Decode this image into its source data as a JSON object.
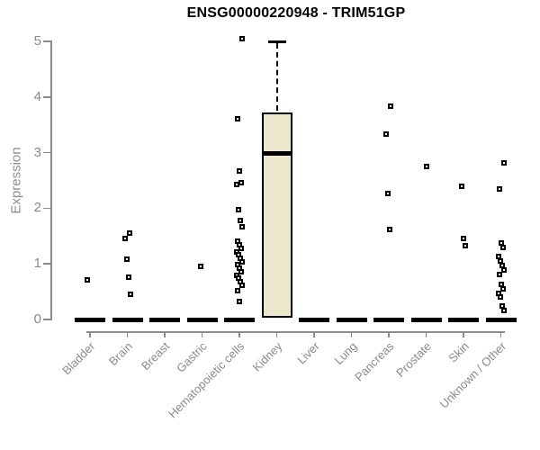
{
  "title": "ENSG00000220948 - TRIM51GP",
  "chart_data": {
    "type": "boxplot",
    "title": "ENSG00000220948 - TRIM51GP",
    "xlabel": "",
    "ylabel": "Expression",
    "ylim": [
      0,
      5
    ],
    "yticks": [
      0,
      1,
      2,
      3,
      4,
      5
    ],
    "grid": false,
    "legend": false,
    "categories": [
      "Bladder",
      "Brain",
      "Breast",
      "Gastric",
      "Hematopoietic cells",
      "Kidney",
      "Liver",
      "Lung",
      "Pancreas",
      "Prostate",
      "Skin",
      "Unknown / Other"
    ],
    "series": [
      {
        "category": "Bladder",
        "box": {
          "median": 0,
          "collapsed": true
        },
        "points": [
          0.71
        ]
      },
      {
        "category": "Brain",
        "box": {
          "median": 0,
          "collapsed": true
        },
        "points": [
          1.56,
          1.45,
          1.08,
          0.76,
          0.45
        ]
      },
      {
        "category": "Breast",
        "box": {
          "median": 0,
          "collapsed": true
        },
        "points": []
      },
      {
        "category": "Gastric",
        "box": {
          "median": 0,
          "collapsed": true
        },
        "points": [
          0.95
        ]
      },
      {
        "category": "Hematopoietic cells",
        "box": {
          "median": 0,
          "collapsed": true
        },
        "points": [
          5.05,
          3.61,
          2.67,
          2.46,
          2.43,
          1.97,
          1.78,
          1.67,
          1.4,
          1.34,
          1.28,
          1.22,
          1.16,
          1.1,
          1.04,
          0.98,
          0.92,
          0.86,
          0.8,
          0.74,
          0.68,
          0.62,
          0.52,
          0.32
        ]
      },
      {
        "category": "Kidney",
        "box": {
          "q1": 0.03,
          "median": 2.98,
          "q3": 3.72,
          "whisker_high": 5.0,
          "collapsed": false
        },
        "points": []
      },
      {
        "category": "Liver",
        "box": {
          "median": 0,
          "collapsed": true
        },
        "points": []
      },
      {
        "category": "Lung",
        "box": {
          "median": 0,
          "collapsed": true
        },
        "points": []
      },
      {
        "category": "Pancreas",
        "box": {
          "median": 0,
          "collapsed": true
        },
        "points": [
          3.84,
          3.33,
          2.26,
          1.62
        ]
      },
      {
        "category": "Prostate",
        "box": {
          "median": 0,
          "collapsed": true
        },
        "points": [
          2.75
        ]
      },
      {
        "category": "Skin",
        "box": {
          "median": 0,
          "collapsed": true
        },
        "points": [
          2.39,
          1.46,
          1.33
        ]
      },
      {
        "category": "Unknown / Other",
        "box": {
          "median": 0,
          "collapsed": true
        },
        "points": [
          2.81,
          2.35,
          1.37,
          1.29,
          1.13,
          1.05,
          0.97,
          0.89,
          0.81,
          0.63,
          0.55,
          0.47,
          0.4,
          0.24,
          0.16
        ]
      }
    ],
    "colors": {
      "box_fill": "#ECE6CD",
      "box_border": "#000000",
      "point": "#000000",
      "axis": "#8c8c8c",
      "tick_label": "#8a8a8a",
      "title": "#000000"
    }
  }
}
